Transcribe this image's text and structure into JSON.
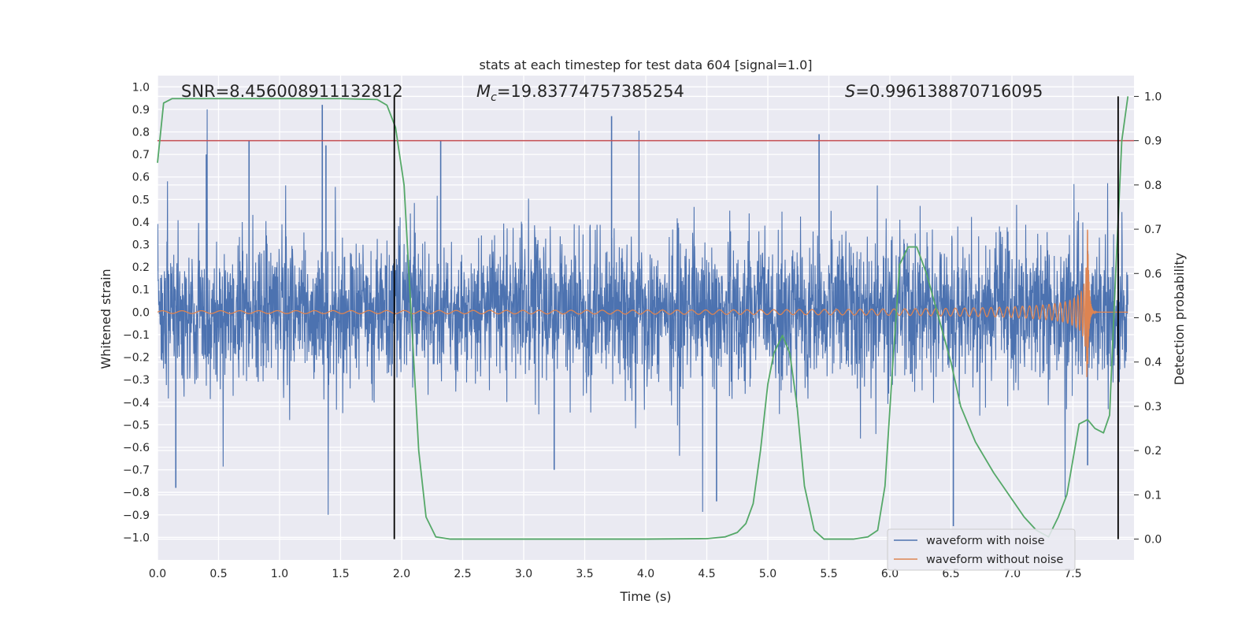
{
  "chart_data": {
    "type": "line",
    "title": "stats at each timestep for test data 604 [signal=1.0]",
    "xlabel": "Time (s)",
    "ylabel": "Whitened strain",
    "y2label": "Detection probability",
    "xlim": [
      0.0,
      8.0
    ],
    "ylim": [
      -1.1,
      1.05
    ],
    "y2lim": [
      -0.047,
      1.047
    ],
    "xticks": [
      0.0,
      0.5,
      1.0,
      1.5,
      2.0,
      2.5,
      3.0,
      3.5,
      4.0,
      4.5,
      5.0,
      5.5,
      6.0,
      6.5,
      7.0,
      7.5
    ],
    "xtick_labels": [
      "0.0",
      "0.5",
      "1.0",
      "1.5",
      "2.0",
      "2.5",
      "3.0",
      "3.5",
      "4.0",
      "4.5",
      "5.0",
      "5.5",
      "6.0",
      "6.5",
      "7.0",
      "7.5"
    ],
    "yticks": [
      1.0,
      0.9,
      0.8,
      0.7,
      0.6,
      0.5,
      0.4,
      0.3,
      0.2,
      0.1,
      0.0,
      -0.1,
      -0.2,
      -0.3,
      -0.4,
      -0.5,
      -0.6,
      -0.7,
      -0.8,
      -0.9,
      -1.0
    ],
    "ytick_labels": [
      "1.0",
      "0.9",
      "0.8",
      "0.7",
      "0.6",
      "0.5",
      "0.4",
      "0.3",
      "0.2",
      "0.1",
      "0.0",
      "−0.1",
      "−0.2",
      "−0.3",
      "−0.4",
      "−0.5",
      "−0.6",
      "−0.7",
      "−0.8",
      "−0.9",
      "−1.0"
    ],
    "y2ticks": [
      1.0,
      0.9,
      0.8,
      0.7,
      0.6,
      0.5,
      0.4,
      0.3,
      0.2,
      0.1,
      0.0
    ],
    "y2tick_labels": [
      "1.0",
      "0.9",
      "0.8",
      "0.7",
      "0.6",
      "0.5",
      "0.4",
      "0.3",
      "0.2",
      "0.1",
      "0.0"
    ],
    "grid": true,
    "annotations": {
      "snr": "SNR=8.456008911132812",
      "mc_symbol": "M",
      "mc_sub": "c",
      "mc_value": "=19.83774757385254",
      "s_symbol": "S",
      "s_value": "=0.996138870716095"
    },
    "legend": {
      "placement": "lower-right",
      "entries": [
        "waveform with noise",
        "waveform without noise"
      ]
    },
    "series": [
      {
        "name": "waveform with noise",
        "color": "#4c72b0",
        "description": "whitened strain with noise, amplitude envelope about ±0.3 to ±0.6 with spikes",
        "sampled_spikes": [
          {
            "x": 0.4,
            "y": 0.7
          },
          {
            "x": 0.75,
            "y": 0.76
          },
          {
            "x": 1.35,
            "y": 0.92
          },
          {
            "x": 1.38,
            "y": 0.74
          },
          {
            "x": 2.32,
            "y": 0.76
          },
          {
            "x": 3.72,
            "y": 0.87
          },
          {
            "x": 5.42,
            "y": 0.79
          },
          {
            "x": 0.15,
            "y": -0.78
          },
          {
            "x": 3.25,
            "y": -0.7
          },
          {
            "x": 4.58,
            "y": -0.84
          },
          {
            "x": 6.52,
            "y": -0.95
          },
          {
            "x": 7.62,
            "y": -0.68
          }
        ]
      },
      {
        "name": "waveform without noise",
        "color": "#dd8452",
        "description": "chirp signal, small amplitude growing to peak near t=7.62 then ringdown to 0",
        "amplitude_start": 0.006,
        "peak_time": 7.62,
        "peak_amplitude": 0.37
      },
      {
        "name": "detection probability",
        "axis": "right",
        "color": "#55a868",
        "x": [
          0.0,
          0.05,
          0.12,
          0.25,
          0.5,
          1.0,
          1.5,
          1.8,
          1.88,
          1.95,
          2.02,
          2.08,
          2.14,
          2.2,
          2.28,
          2.4,
          3.0,
          4.0,
          4.5,
          4.65,
          4.75,
          4.82,
          4.88,
          4.94,
          5.0,
          5.05,
          5.12,
          5.18,
          5.24,
          5.3,
          5.38,
          5.46,
          5.55,
          5.7,
          5.82,
          5.9,
          5.96,
          6.02,
          6.08,
          6.15,
          6.22,
          6.3,
          6.4,
          6.5,
          6.58,
          6.7,
          6.85,
          7.0,
          7.1,
          7.2,
          7.3,
          7.38,
          7.45,
          7.5,
          7.55,
          7.62,
          7.68,
          7.75,
          7.8,
          7.85,
          7.9,
          7.95
        ],
        "y": [
          0.85,
          0.985,
          0.995,
          0.995,
          0.995,
          0.995,
          0.995,
          0.993,
          0.98,
          0.93,
          0.8,
          0.5,
          0.2,
          0.05,
          0.005,
          0.0,
          0.0,
          0.0,
          0.001,
          0.005,
          0.015,
          0.035,
          0.08,
          0.2,
          0.35,
          0.42,
          0.46,
          0.42,
          0.3,
          0.12,
          0.02,
          0.0,
          0.0,
          0.0,
          0.005,
          0.02,
          0.12,
          0.38,
          0.62,
          0.66,
          0.66,
          0.6,
          0.5,
          0.4,
          0.3,
          0.22,
          0.15,
          0.09,
          0.05,
          0.02,
          0.005,
          0.05,
          0.1,
          0.18,
          0.26,
          0.27,
          0.25,
          0.24,
          0.28,
          0.6,
          0.9,
          1.0
        ]
      }
    ],
    "hlines": [
      {
        "axis": "right",
        "y": 0.9,
        "color": "#c44e52"
      }
    ],
    "vlines": [
      {
        "x": 1.94,
        "color": "#000000"
      },
      {
        "x": 7.87,
        "color": "#000000"
      }
    ]
  }
}
